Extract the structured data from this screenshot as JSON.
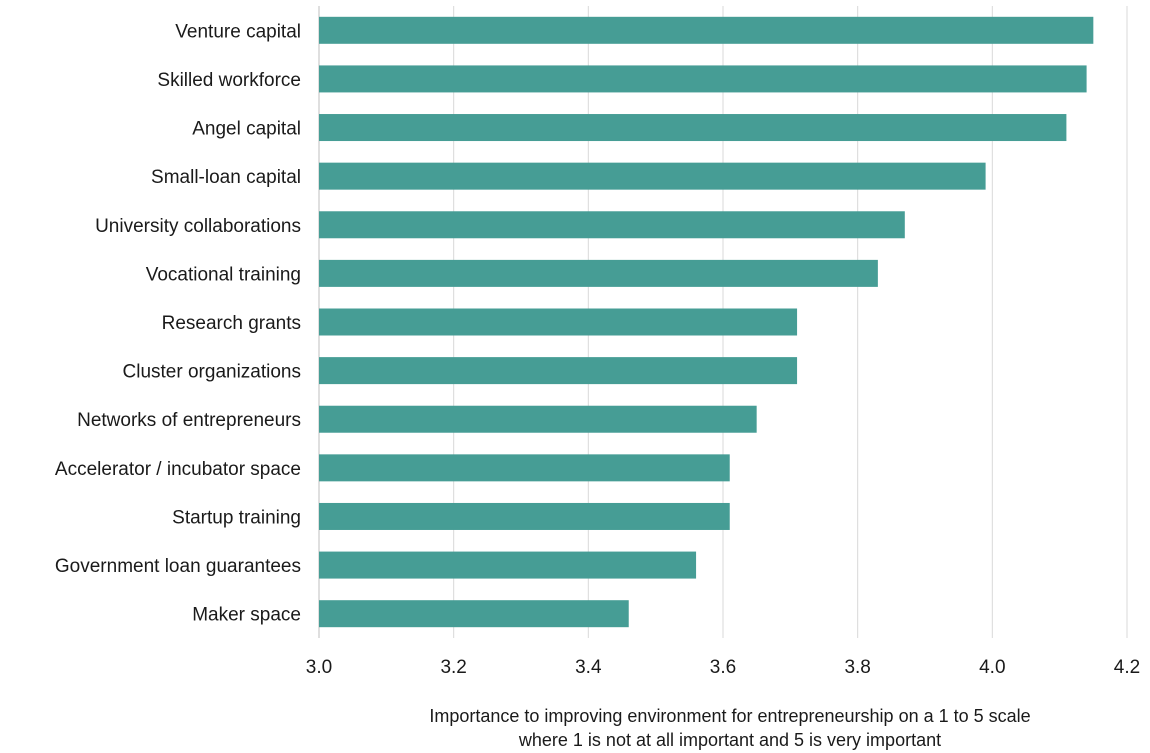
{
  "chart_data": {
    "type": "bar",
    "orientation": "horizontal",
    "categories": [
      "Venture capital",
      "Skilled workforce",
      "Angel capital",
      "Small-loan capital",
      "University collaborations",
      "Vocational training",
      "Research grants",
      "Cluster organizations",
      "Networks of entrepreneurs",
      "Accelerator / incubator space",
      "Startup training",
      "Government loan guarantees",
      "Maker space"
    ],
    "values": [
      4.15,
      4.14,
      4.11,
      3.99,
      3.87,
      3.83,
      3.71,
      3.71,
      3.65,
      3.61,
      3.61,
      3.56,
      3.46
    ],
    "xlim": [
      3.0,
      4.2
    ],
    "xticks": [
      "3.0",
      "3.2",
      "3.4",
      "3.6",
      "3.8",
      "4.0",
      "4.2"
    ],
    "xlabel_line1": "Importance to improving environment for entrepreneurship on a 1 to 5 scale",
    "xlabel_line2": "where 1 is not at all important and 5 is very important",
    "grid": "vertical",
    "bar_color": "#469d95"
  }
}
